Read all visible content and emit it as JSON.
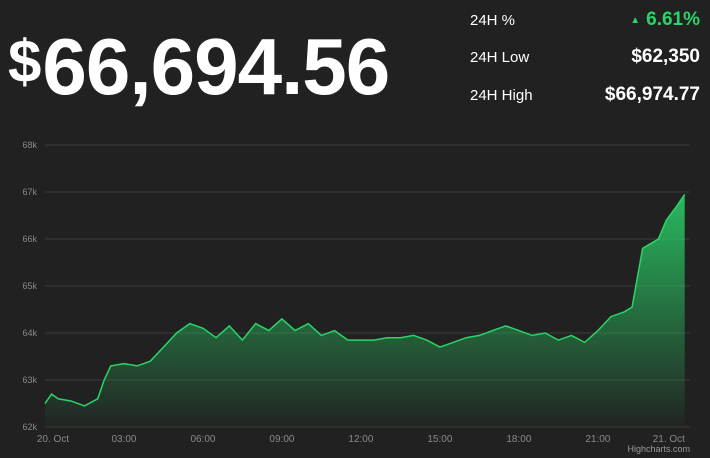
{
  "price": {
    "currency": "$",
    "value": "66,694.56"
  },
  "stats": [
    {
      "label": "24H %",
      "value": "6.61%",
      "trend": "up",
      "icon": "triangle-up-icon"
    },
    {
      "label": "24H Low",
      "value": "$62,350"
    },
    {
      "label": "24H High",
      "value": "$66,974.77"
    }
  ],
  "colors": {
    "background": "#212121",
    "up": "#2ad468",
    "line": "#2ad468",
    "grid": "#3a3a3a"
  },
  "credit": "Highcharts.com",
  "chart_data": {
    "type": "area",
    "title": "",
    "xlabel": "",
    "ylabel": "",
    "ylim": [
      62000,
      68000
    ],
    "y_ticks": [
      62000,
      63000,
      64000,
      65000,
      66000,
      67000,
      68000
    ],
    "y_tick_labels": [
      "62k",
      "63k",
      "64k",
      "65k",
      "66k",
      "67k",
      "68k"
    ],
    "xlim": [
      0,
      24.5
    ],
    "x_ticks": [
      0,
      3,
      6,
      9,
      12,
      15,
      18,
      21,
      24
    ],
    "x_tick_labels": [
      "20. Oct",
      "03:00",
      "06:00",
      "09:00",
      "12:00",
      "15:00",
      "18:00",
      "21:00",
      "21. Oct"
    ],
    "grid": true,
    "series": [
      {
        "x": [
          0,
          0.25,
          0.5,
          1,
          1.5,
          2,
          2.25,
          2.5,
          3,
          3.5,
          4,
          4.5,
          5,
          5.5,
          6,
          6.5,
          7,
          7.5,
          8,
          8.5,
          9,
          9.5,
          10,
          10.5,
          11,
          11.5,
          12,
          12.5,
          13,
          13.5,
          14,
          14.5,
          15,
          15.5,
          16,
          16.5,
          17,
          17.5,
          18,
          18.5,
          19,
          19.5,
          20,
          20.5,
          21,
          21.5,
          22,
          22.3,
          22.7,
          23,
          23.3,
          23.6,
          24,
          24.3
        ],
        "y": [
          62500,
          62700,
          62600,
          62550,
          62450,
          62600,
          63000,
          63300,
          63350,
          63300,
          63400,
          63700,
          64000,
          64200,
          64100,
          63900,
          64150,
          63850,
          64200,
          64050,
          64300,
          64050,
          64200,
          63950,
          64050,
          63850,
          63850,
          63850,
          63900,
          63900,
          63950,
          63850,
          63700,
          63800,
          63900,
          63950,
          64050,
          64150,
          64050,
          63950,
          64000,
          63850,
          63950,
          63800,
          64050,
          64350,
          64450,
          64550,
          65800,
          65900,
          66000,
          66400,
          66700,
          66950
        ]
      }
    ]
  }
}
